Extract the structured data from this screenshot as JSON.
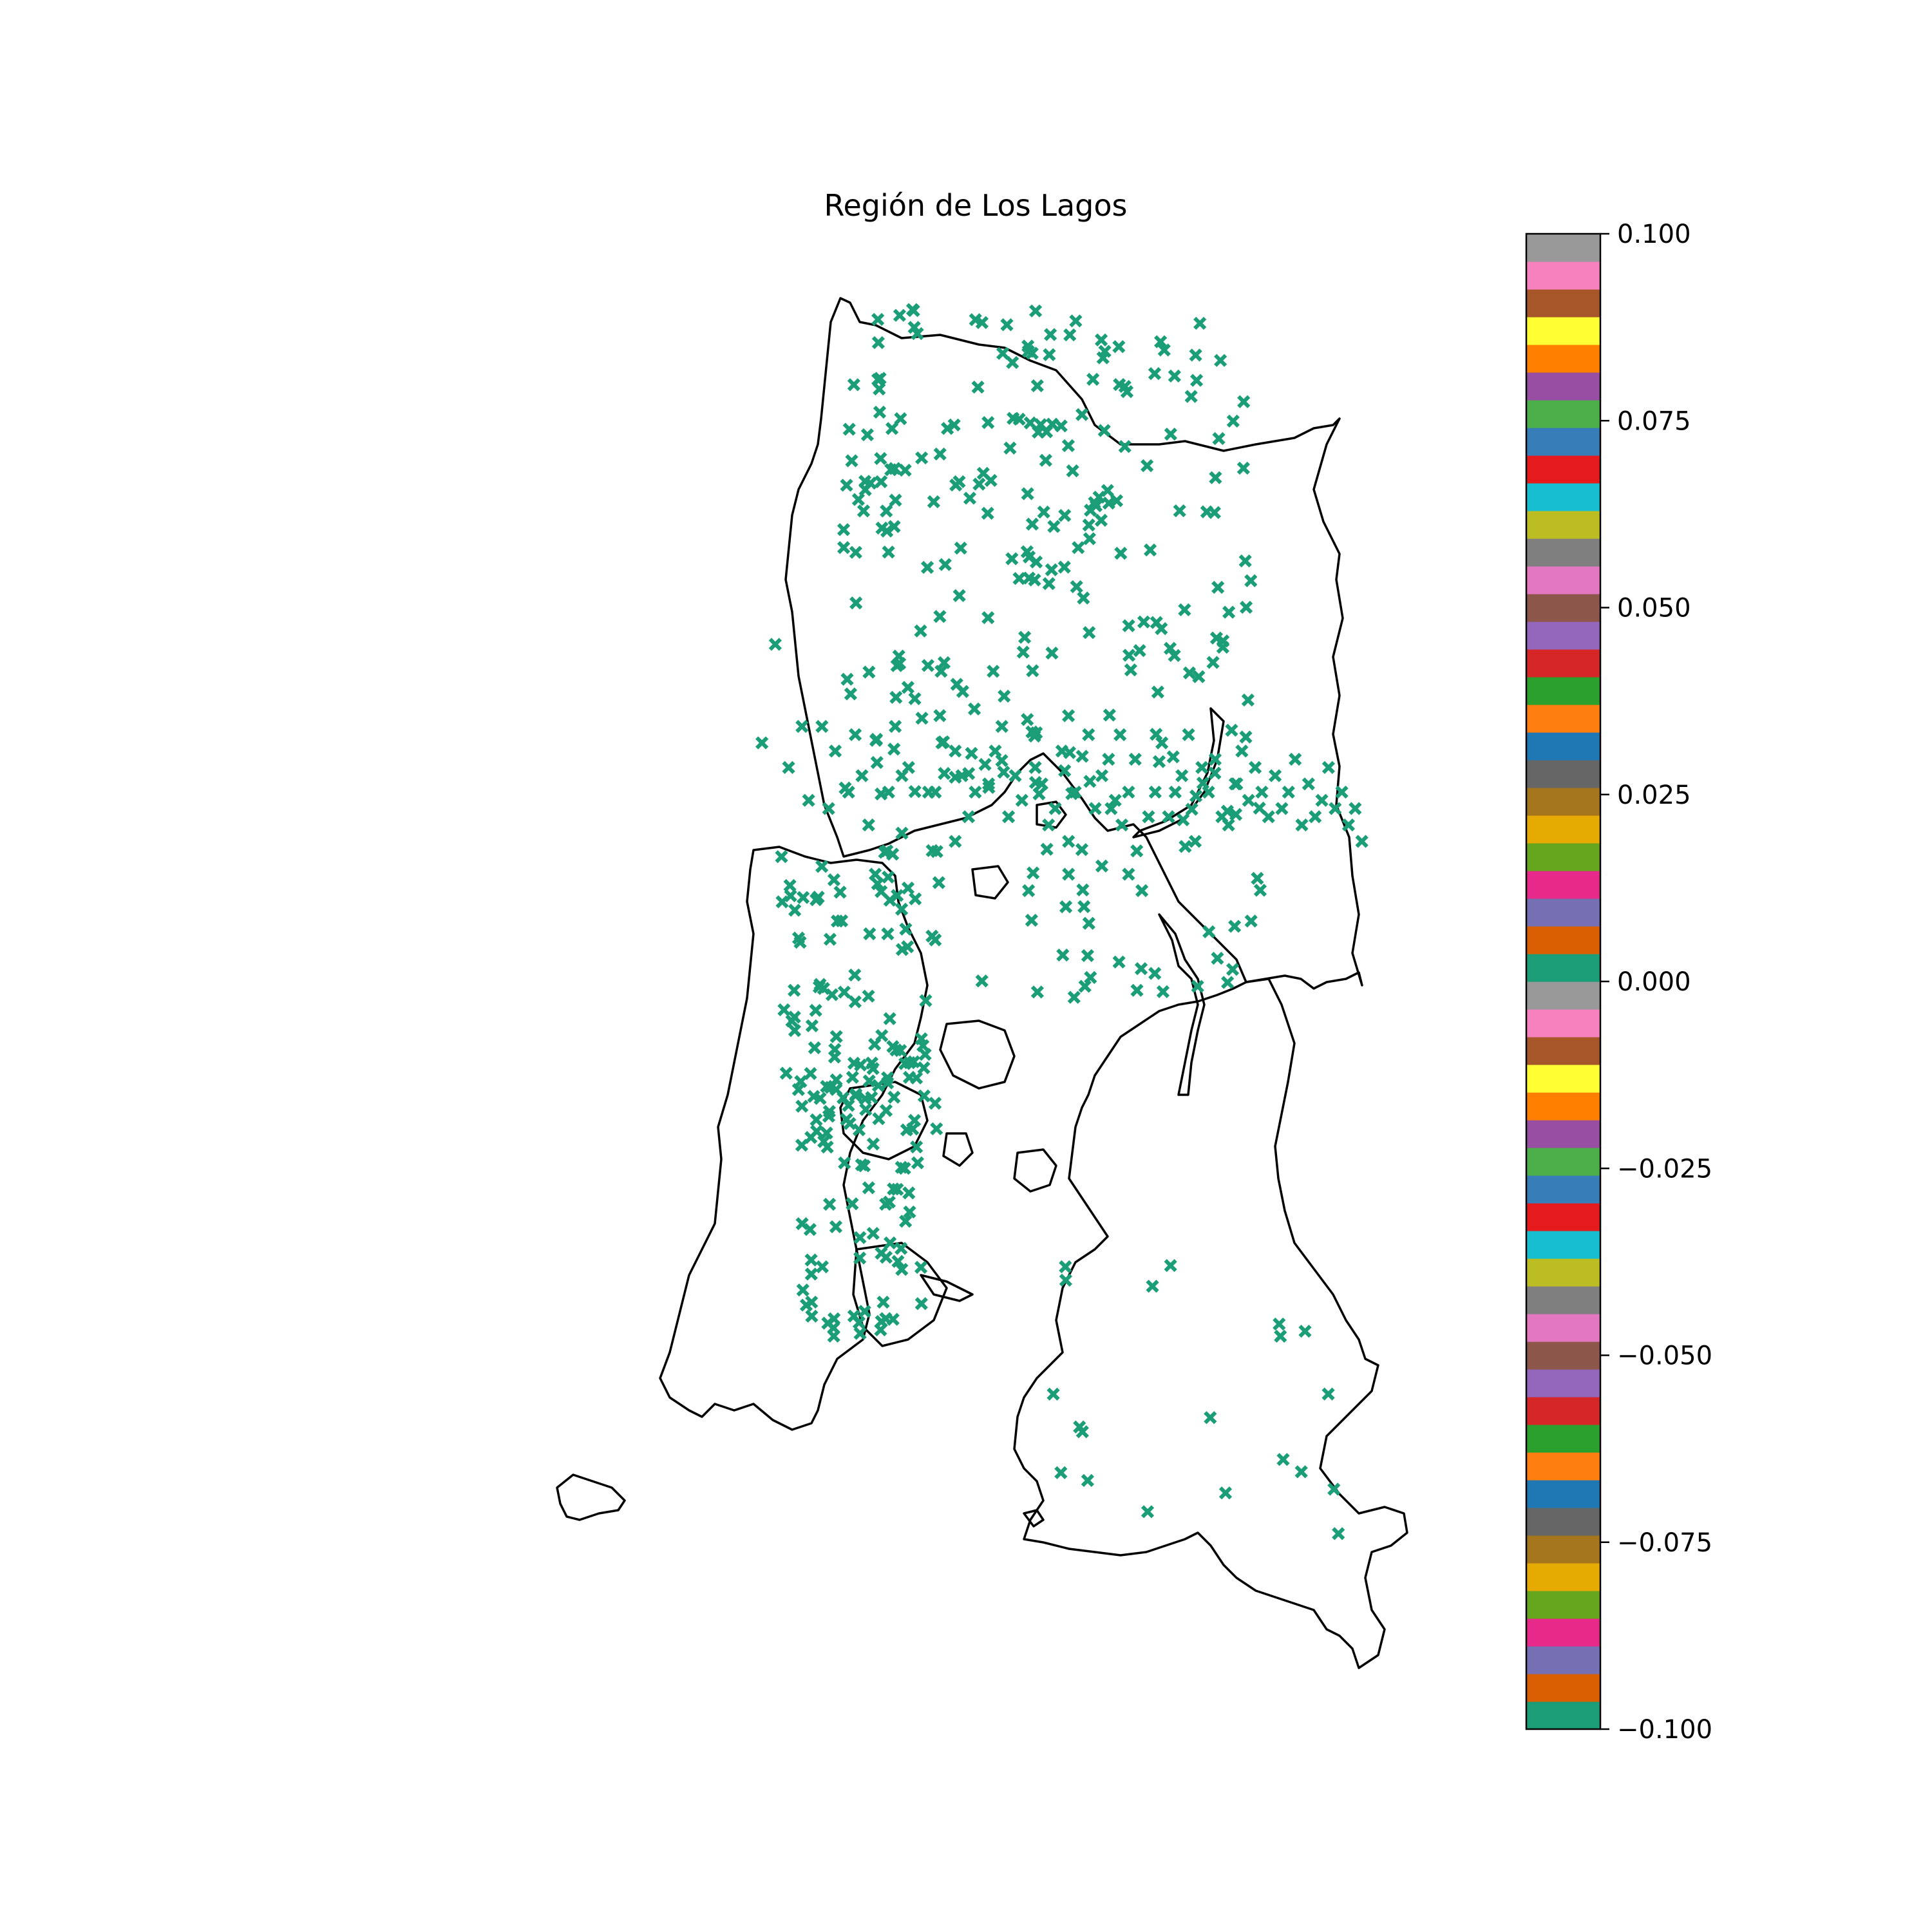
{
  "title": "Región de Los Lagos",
  "map": {
    "marker_symbol": "x",
    "marker_color": "#1b9e77",
    "outline_color": "#000000",
    "points": [
      [
        0.09,
        0.54
      ],
      [
        0.11,
        0.42
      ],
      [
        0.13,
        0.57
      ],
      [
        0.15,
        0.52
      ],
      [
        0.16,
        0.61
      ],
      [
        0.18,
        0.52
      ],
      [
        0.19,
        0.62
      ],
      [
        0.2,
        0.55
      ],
      [
        0.22,
        0.6
      ],
      [
        0.23,
        0.53
      ],
      [
        0.24,
        0.58
      ],
      [
        0.25,
        0.64
      ],
      [
        0.26,
        0.7
      ],
      [
        0.28,
        0.6
      ],
      [
        0.29,
        0.52
      ],
      [
        0.3,
        0.65
      ],
      [
        0.31,
        0.57
      ],
      [
        0.32,
        0.73
      ],
      [
        0.33,
        0.51
      ],
      [
        0.34,
        0.6
      ],
      [
        0.35,
        0.78
      ],
      [
        0.36,
        0.54
      ],
      [
        0.38,
        0.66
      ],
      [
        0.39,
        0.58
      ],
      [
        0.41,
        0.6
      ],
      [
        0.42,
        0.83
      ],
      [
        0.44,
        0.55
      ],
      [
        0.46,
        0.63
      ],
      [
        0.47,
        0.58
      ],
      [
        0.49,
        0.72
      ],
      [
        0.5,
        0.57
      ],
      [
        0.52,
        0.64
      ],
      [
        0.54,
        0.55
      ],
      [
        0.56,
        0.6
      ],
      [
        0.57,
        0.67
      ],
      [
        0.58,
        0.53
      ],
      [
        0.6,
        0.58
      ],
      [
        0.62,
        0.61
      ],
      [
        0.63,
        0.64
      ],
      [
        0.65,
        0.56
      ],
      [
        0.66,
        0.72
      ],
      [
        0.68,
        0.6
      ],
      [
        0.69,
        0.54
      ],
      [
        0.7,
        0.63
      ],
      [
        0.72,
        0.58
      ],
      [
        0.73,
        0.53
      ],
      [
        0.74,
        0.66
      ],
      [
        0.76,
        0.6
      ],
      [
        0.77,
        0.56
      ],
      [
        0.78,
        0.63
      ],
      [
        0.8,
        0.59
      ],
      [
        0.81,
        0.55
      ],
      [
        0.82,
        0.61
      ],
      [
        0.83,
        0.57
      ],
      [
        0.85,
        0.63
      ],
      [
        0.86,
        0.58
      ],
      [
        0.87,
        0.62
      ],
      [
        0.88,
        0.6
      ],
      [
        0.89,
        0.56
      ],
      [
        0.9,
        0.64
      ],
      [
        0.91,
        0.59
      ],
      [
        0.92,
        0.63
      ],
      [
        0.93,
        0.61
      ],
      [
        0.94,
        0.57
      ],
      [
        0.95,
        0.62
      ],
      [
        0.96,
        0.6
      ],
      [
        0.97,
        0.64
      ],
      [
        0.98,
        0.62
      ],
      [
        0.99,
        0.66
      ],
      [
        0.3,
        0.58
      ],
      [
        0.35,
        0.6
      ],
      [
        0.38,
        0.55
      ],
      [
        0.4,
        0.63
      ],
      [
        0.43,
        0.59
      ],
      [
        0.45,
        0.52
      ],
      [
        0.48,
        0.61
      ],
      [
        0.51,
        0.59
      ],
      [
        0.53,
        0.62
      ],
      [
        0.55,
        0.66
      ],
      [
        0.59,
        0.62
      ],
      [
        0.61,
        0.56
      ],
      [
        0.64,
        0.6
      ],
      [
        0.67,
        0.63
      ],
      [
        0.71,
        0.6
      ],
      [
        0.75,
        0.57
      ],
      [
        0.79,
        0.64
      ],
      [
        0.84,
        0.6
      ],
      [
        0.55,
        0.7
      ],
      [
        0.6,
        0.69
      ],
      [
        0.64,
        0.7
      ]
    ]
  },
  "colorbar": {
    "min": -0.1,
    "max": 0.1,
    "ticks": [
      "0.100",
      "0.075",
      "0.050",
      "0.025",
      "0.000",
      "−0.025",
      "−0.050",
      "−0.075",
      "−0.100"
    ],
    "colors_bottom_to_top": [
      "#1b9e77",
      "#d95f02",
      "#7570b3",
      "#e7298a",
      "#66a61e",
      "#e6ab02",
      "#a6761d",
      "#666666",
      "#1f77b4",
      "#ff7f0e",
      "#2ca02c",
      "#d62728",
      "#9467bd",
      "#8c564b",
      "#e377c2",
      "#7f7f7f",
      "#bcbd22",
      "#17becf",
      "#e41a1c",
      "#377eb8",
      "#4daf4a",
      "#984ea3",
      "#ff7f00",
      "#ffff33",
      "#a65628",
      "#f781bf",
      "#999999",
      "#1b9e77",
      "#d95f02",
      "#7570b3",
      "#e7298a",
      "#66a61e",
      "#e6ab02",
      "#a6761d",
      "#666666",
      "#1f77b4",
      "#ff7f0e",
      "#2ca02c",
      "#d62728",
      "#9467bd",
      "#8c564b",
      "#e377c2",
      "#7f7f7f",
      "#bcbd22",
      "#17becf",
      "#e41a1c",
      "#377eb8",
      "#4daf4a",
      "#984ea3",
      "#ff7f00",
      "#ffff33",
      "#a65628",
      "#f781bf",
      "#999999"
    ]
  }
}
